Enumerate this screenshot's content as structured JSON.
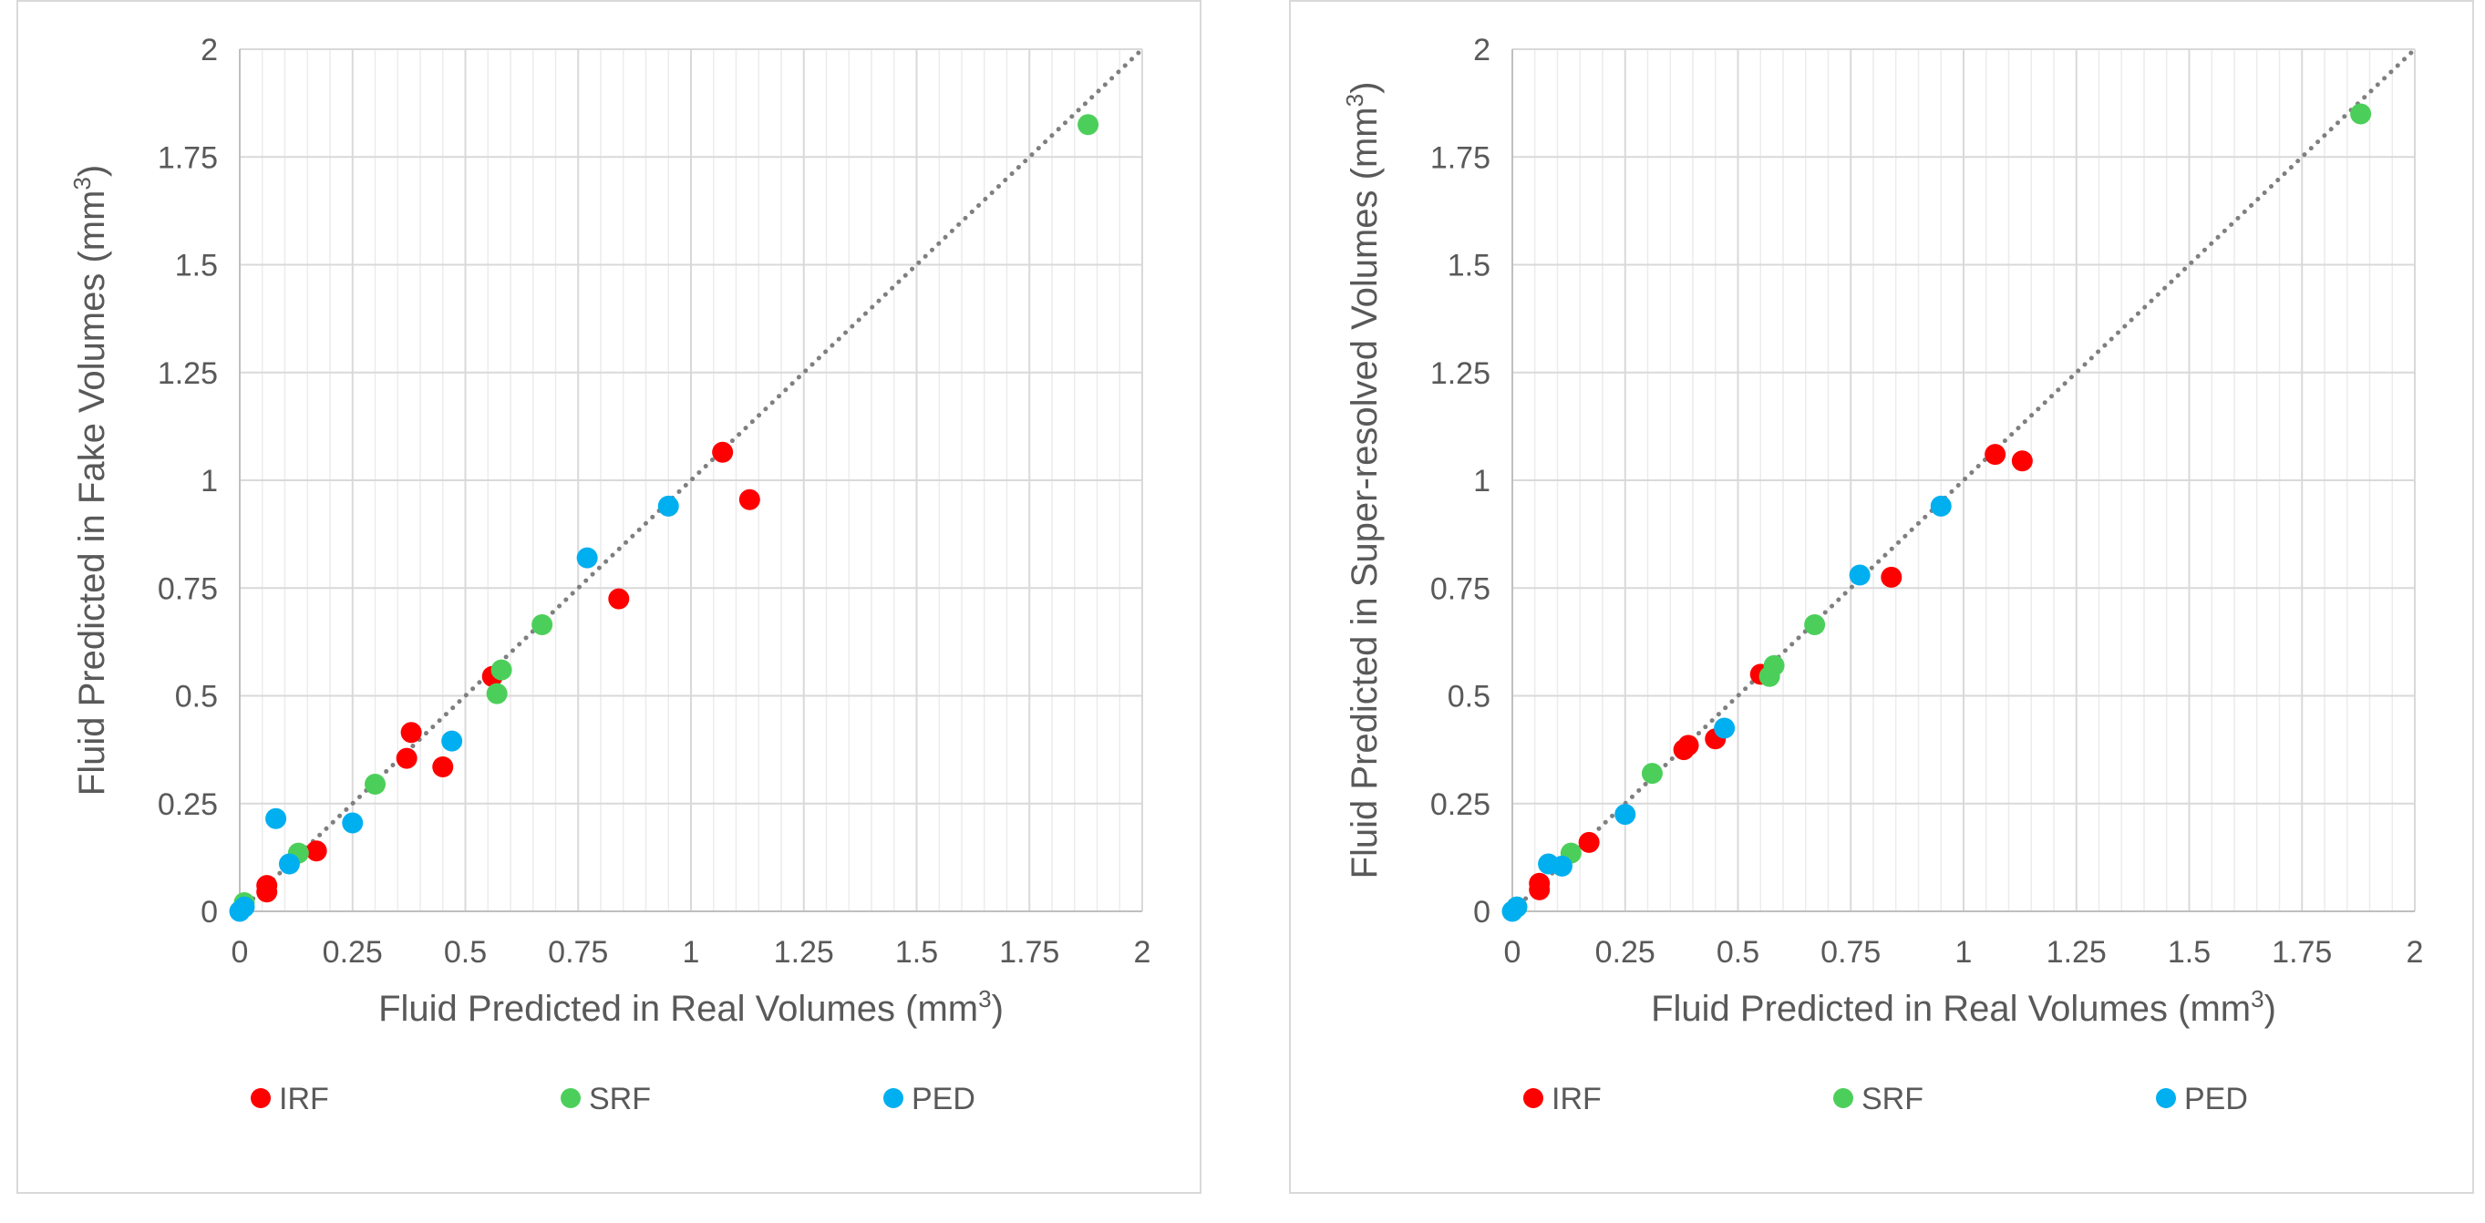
{
  "chart_data": [
    {
      "type": "scatter",
      "xlabel": "Fluid Predicted in Real Volumes (mm",
      "xlabel_sup": "3",
      "xlabel_end": ")",
      "ylabel": "Fluid Predicted in Fake Volumes (mm",
      "ylabel_sup": "3",
      "ylabel_end": ")",
      "xlim": [
        0,
        2
      ],
      "ylim": [
        0,
        2
      ],
      "x_ticks": [
        "0",
        "0.25",
        "0.5",
        "0.75",
        "1",
        "1.25",
        "1.5",
        "1.75",
        "2"
      ],
      "y_ticks": [
        "0",
        "0.25",
        "0.5",
        "0.75",
        "1",
        "1.25",
        "1.5",
        "1.75",
        "2"
      ],
      "grid": true,
      "reference_line": "y = x (dotted)",
      "legend_position": "bottom",
      "series": [
        {
          "name": "IRF",
          "color": "#ff0000",
          "points": [
            [
              0.06,
              0.06
            ],
            [
              0.06,
              0.045
            ],
            [
              0.17,
              0.14
            ],
            [
              0.37,
              0.355
            ],
            [
              0.38,
              0.415
            ],
            [
              0.45,
              0.335
            ],
            [
              0.56,
              0.545
            ],
            [
              0.84,
              0.725
            ],
            [
              1.07,
              1.065
            ],
            [
              1.13,
              0.955
            ]
          ]
        },
        {
          "name": "SRF",
          "color": "#4ccf5a",
          "points": [
            [
              0.01,
              0.02
            ],
            [
              0.13,
              0.135
            ],
            [
              0.3,
              0.295
            ],
            [
              0.57,
              0.505
            ],
            [
              0.58,
              0.56
            ],
            [
              0.67,
              0.665
            ],
            [
              1.88,
              1.825
            ]
          ]
        },
        {
          "name": "PED",
          "color": "#00aff0",
          "points": [
            [
              0.0,
              0.0
            ],
            [
              0.01,
              0.01
            ],
            [
              0.08,
              0.215
            ],
            [
              0.11,
              0.11
            ],
            [
              0.25,
              0.205
            ],
            [
              0.47,
              0.395
            ],
            [
              0.77,
              0.82
            ],
            [
              0.95,
              0.94
            ]
          ]
        }
      ]
    },
    {
      "type": "scatter",
      "xlabel": "Fluid Predicted in Real Volumes (mm",
      "xlabel_sup": "3",
      "xlabel_end": ")",
      "ylabel": "Fluid Predicted in Super-resolved Volumes (mm",
      "ylabel_sup": "3",
      "ylabel_end": ")",
      "xlim": [
        0,
        2
      ],
      "ylim": [
        0,
        2
      ],
      "x_ticks": [
        "0",
        "0.25",
        "0.5",
        "0.75",
        "1",
        "1.25",
        "1.5",
        "1.75",
        "2"
      ],
      "y_ticks": [
        "0",
        "0.25",
        "0.5",
        "0.75",
        "1",
        "1.25",
        "1.5",
        "1.75",
        "2"
      ],
      "grid": true,
      "reference_line": "y = x (dotted)",
      "legend_position": "bottom",
      "series": [
        {
          "name": "IRF",
          "color": "#ff0000",
          "points": [
            [
              0.06,
              0.065
            ],
            [
              0.06,
              0.05
            ],
            [
              0.17,
              0.16
            ],
            [
              0.38,
              0.375
            ],
            [
              0.39,
              0.385
            ],
            [
              0.45,
              0.4
            ],
            [
              0.55,
              0.55
            ],
            [
              0.84,
              0.775
            ],
            [
              1.07,
              1.06
            ],
            [
              1.13,
              1.045
            ]
          ]
        },
        {
          "name": "SRF",
          "color": "#4ccf5a",
          "points": [
            [
              0.01,
              0.01
            ],
            [
              0.13,
              0.135
            ],
            [
              0.31,
              0.32
            ],
            [
              0.57,
              0.545
            ],
            [
              0.58,
              0.57
            ],
            [
              0.67,
              0.665
            ],
            [
              1.88,
              1.85
            ]
          ]
        },
        {
          "name": "PED",
          "color": "#00aff0",
          "points": [
            [
              0.0,
              0.0
            ],
            [
              0.01,
              0.01
            ],
            [
              0.08,
              0.11
            ],
            [
              0.11,
              0.105
            ],
            [
              0.25,
              0.225
            ],
            [
              0.47,
              0.425
            ],
            [
              0.77,
              0.78
            ],
            [
              0.95,
              0.94
            ]
          ]
        }
      ]
    }
  ]
}
